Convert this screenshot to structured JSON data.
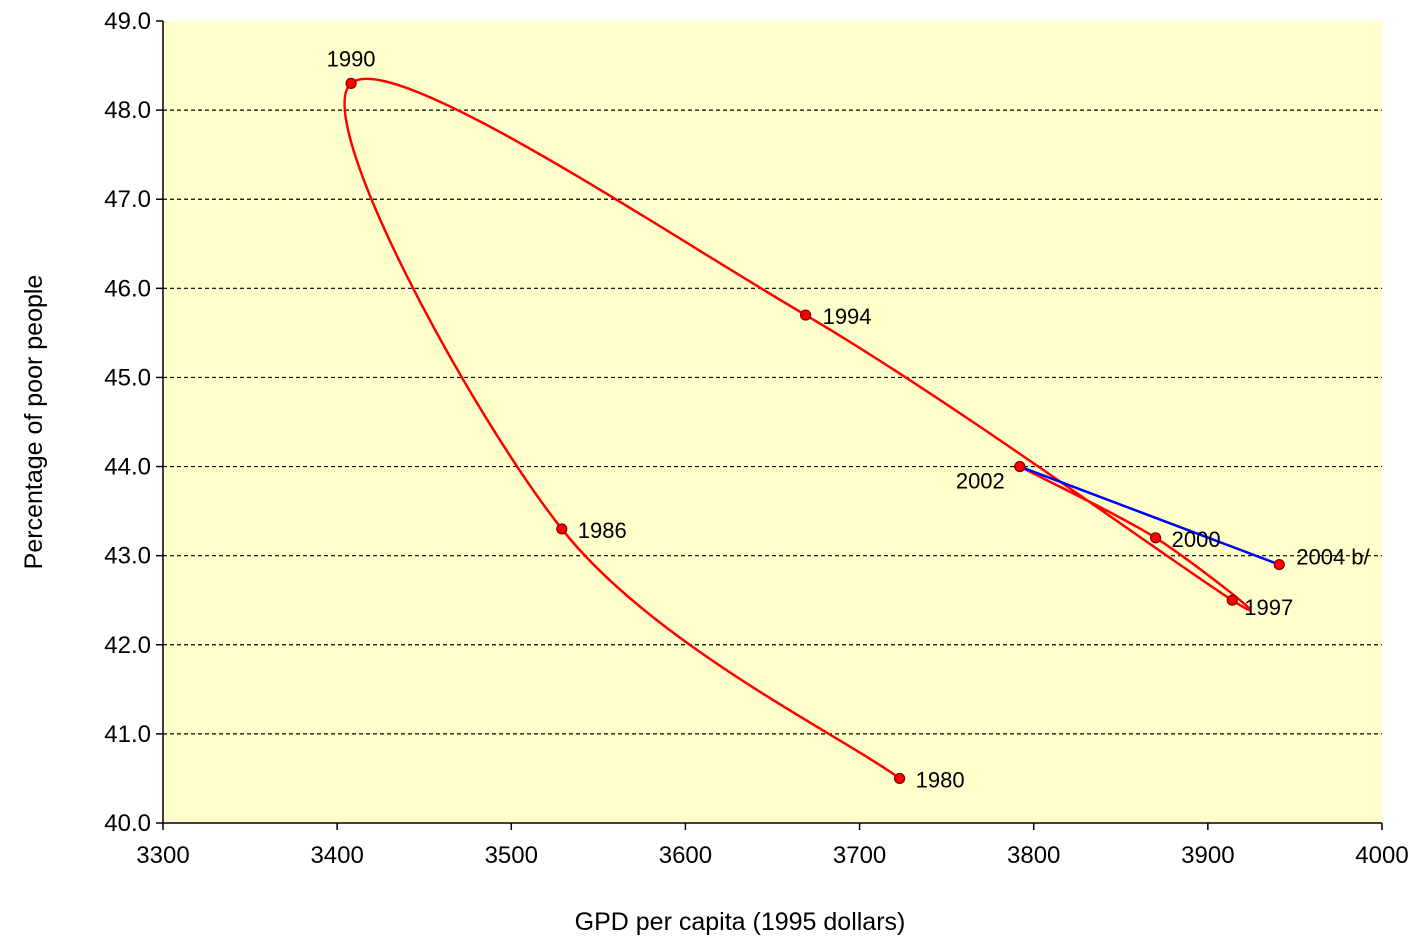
{
  "chart_data": {
    "type": "scatter",
    "title": "",
    "xlabel": "GPD per capita (1995 dollars)",
    "ylabel": "Percentage of poor people",
    "xlim": [
      3300,
      4000
    ],
    "ylim": [
      40.0,
      49.0
    ],
    "x_ticks": [
      "3300",
      "3400",
      "3500",
      "3600",
      "3700",
      "3800",
      "3900",
      "4000"
    ],
    "y_ticks": [
      "40.0",
      "41.0",
      "42.0",
      "43.0",
      "44.0",
      "45.0",
      "46.0",
      "47.0",
      "48.0",
      "49.0"
    ],
    "grid": "horizontal dashed",
    "plot_background": "#ffffcc",
    "series": [
      {
        "color": "#ff0000",
        "smoothed": true,
        "points": [
          {
            "label": "1980",
            "x": 3723,
            "y": 40.5
          },
          {
            "label": "1986",
            "x": 3529,
            "y": 43.3
          },
          {
            "label": "1990",
            "x": 3408,
            "y": 48.3
          },
          {
            "label": "1994",
            "x": 3669,
            "y": 45.7
          },
          {
            "label": "1997",
            "x": 3914,
            "y": 42.5
          },
          {
            "label": "2000",
            "x": 3870,
            "y": 43.2
          },
          {
            "label": "2002",
            "x": 3792,
            "y": 44.0
          }
        ]
      },
      {
        "color": "#0000ff",
        "smoothed": false,
        "points": [
          {
            "label": "2002",
            "x": 3792,
            "y": 44.0,
            "show_label": false
          },
          {
            "label": "2004 b/",
            "x": 3941,
            "y": 42.9
          }
        ]
      }
    ]
  }
}
